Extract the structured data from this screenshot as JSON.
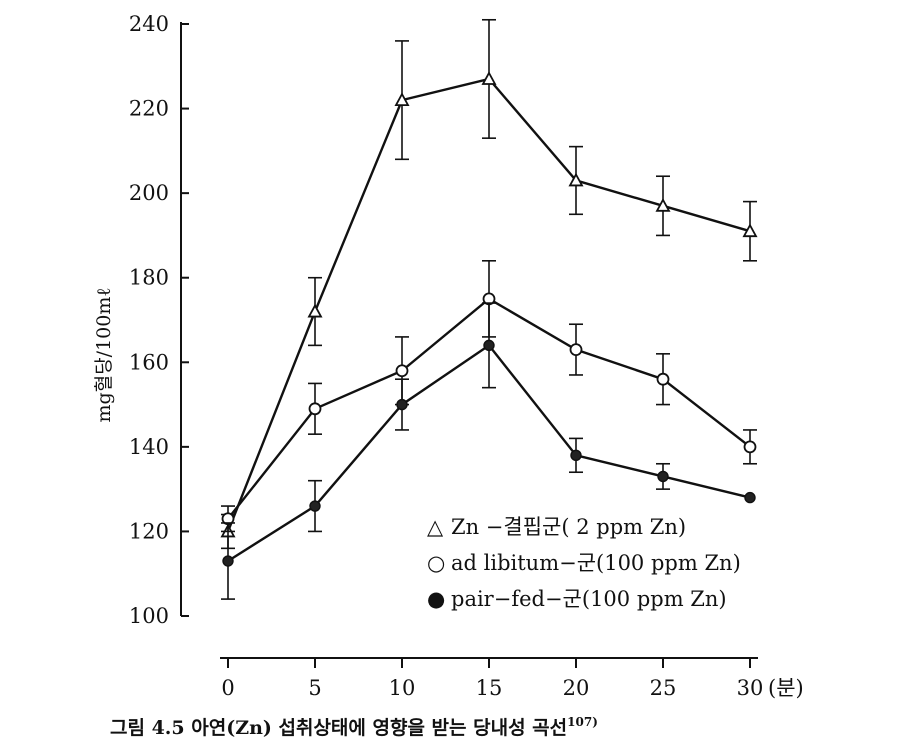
{
  "chart_data": {
    "type": "line",
    "ylabel": "mg혈당/100mℓ",
    "xunit": "(분)",
    "ylim": [
      100,
      240
    ],
    "yticks": [
      100,
      120,
      140,
      160,
      180,
      200,
      220,
      240
    ],
    "xticks": [
      0,
      5,
      10,
      15,
      20,
      25,
      30
    ],
    "x": [
      0,
      5,
      10,
      15,
      20,
      25,
      30
    ],
    "series": [
      {
        "name": "Zn −결핍군( 2 ppm Zn)",
        "legend_symbol": "△",
        "marker": "triangle",
        "values": [
          120,
          172,
          222,
          227,
          203,
          197,
          191
        ],
        "errors": [
          4,
          8,
          14,
          14,
          8,
          7,
          7
        ]
      },
      {
        "name": "ad  libitum−군(100 ppm Zn)",
        "legend_symbol": "○",
        "marker": "circle-open",
        "values": [
          123,
          149,
          158,
          175,
          163,
          156,
          140
        ],
        "errors": [
          3,
          6,
          8,
          9,
          6,
          6,
          4
        ]
      },
      {
        "name": "pair−fed−군(100 ppm Zn)",
        "legend_symbol": "●",
        "marker": "circle-filled",
        "values": [
          113,
          126,
          150,
          164,
          138,
          133,
          128
        ],
        "errors": [
          9,
          6,
          6,
          10,
          4,
          3,
          0
        ]
      }
    ]
  },
  "caption": "그림 4.5  아연(Zn) 섭취상태에 영향을 받는 당내성 곡선",
  "caption_ref": "107)"
}
